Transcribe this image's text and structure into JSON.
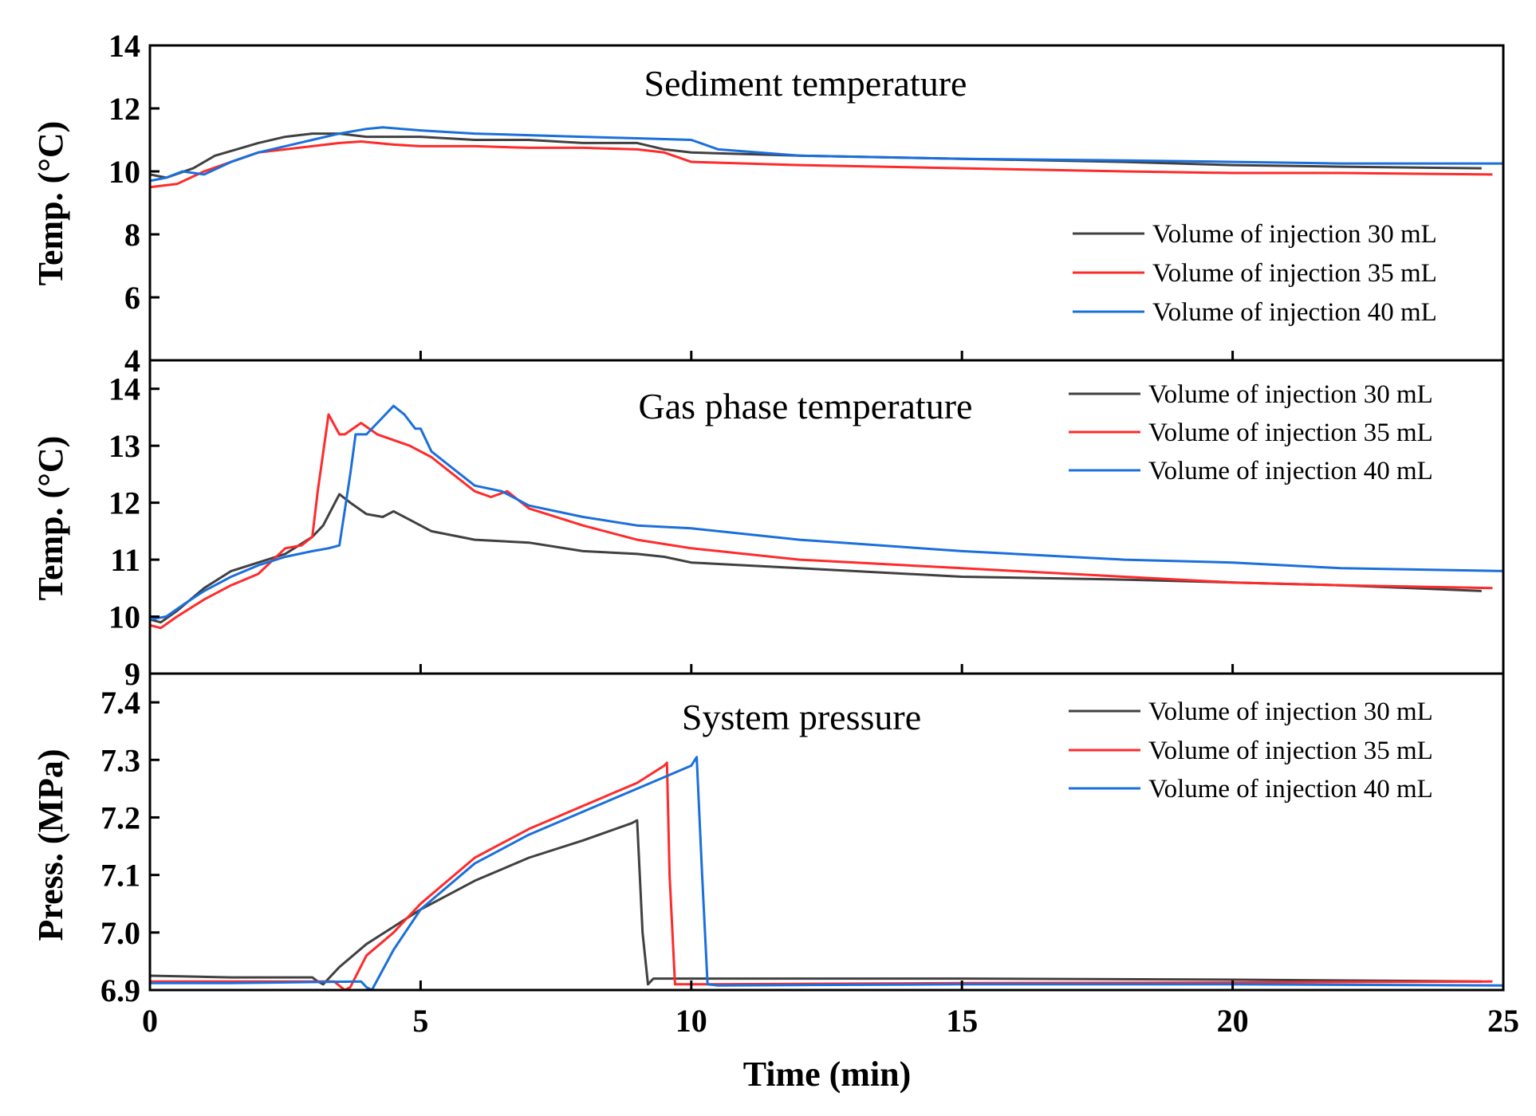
{
  "chart_data": [
    {
      "type": "line",
      "title": "Sediment temperature",
      "xlabel": "Time (min)",
      "ylabel": "Temp. (°C)",
      "xlim": [
        0,
        25
      ],
      "ylim": [
        4,
        14
      ],
      "xticks": [
        0,
        5,
        10,
        15,
        20,
        25
      ],
      "yticks": [
        4,
        6,
        8,
        10,
        12,
        14
      ],
      "legend_position": "right",
      "series": [
        {
          "name": "Volume of injection 30 mL",
          "color": "#404040",
          "x": [
            0,
            0.3,
            0.8,
            1.2,
            1.6,
            2.0,
            2.5,
            3.0,
            3.5,
            4.0,
            5.0,
            6.0,
            7.0,
            8.0,
            9.0,
            9.5,
            10.0,
            12.0,
            15.0,
            18.0,
            20.0,
            22.0,
            24.6
          ],
          "y": [
            9.9,
            9.8,
            10.1,
            10.5,
            10.7,
            10.9,
            11.1,
            11.2,
            11.2,
            11.1,
            11.1,
            11.0,
            11.0,
            10.9,
            10.9,
            10.7,
            10.6,
            10.5,
            10.4,
            10.3,
            10.2,
            10.15,
            10.1
          ]
        },
        {
          "name": "Volume of injection 35 mL",
          "color": "#ff2a2a",
          "x": [
            0,
            0.5,
            1.0,
            1.5,
            2.0,
            2.5,
            3.0,
            3.5,
            3.9,
            4.5,
            5.0,
            6.0,
            7.0,
            8.0,
            9.0,
            9.5,
            10.0,
            12.0,
            15.0,
            18.0,
            20.0,
            22.0,
            24.8
          ],
          "y": [
            9.5,
            9.6,
            10.0,
            10.3,
            10.6,
            10.7,
            10.8,
            10.9,
            10.95,
            10.85,
            10.8,
            10.8,
            10.75,
            10.75,
            10.7,
            10.6,
            10.3,
            10.2,
            10.1,
            10.0,
            9.95,
            9.95,
            9.9
          ]
        },
        {
          "name": "Volume of injection 40 mL",
          "color": "#1a6fdc",
          "x": [
            0,
            0.3,
            0.6,
            1.0,
            1.5,
            2.0,
            2.5,
            3.0,
            3.5,
            4.0,
            4.3,
            5.0,
            6.0,
            7.0,
            8.0,
            9.0,
            10.0,
            10.5,
            12.0,
            15.0,
            18.0,
            20.0,
            22.0,
            25.0
          ],
          "y": [
            9.7,
            9.8,
            10.0,
            9.9,
            10.3,
            10.6,
            10.8,
            11.0,
            11.2,
            11.35,
            11.4,
            11.3,
            11.2,
            11.15,
            11.1,
            11.05,
            11.0,
            10.7,
            10.5,
            10.4,
            10.35,
            10.3,
            10.25,
            10.25
          ]
        }
      ]
    },
    {
      "type": "line",
      "title": "Gas phase temperature",
      "xlabel": "Time (min)",
      "ylabel": "Temp. (°C)",
      "xlim": [
        0,
        25
      ],
      "ylim": [
        9,
        14.5
      ],
      "xticks": [
        0,
        5,
        10,
        15,
        20,
        25
      ],
      "yticks": [
        9,
        10,
        11,
        12,
        13,
        14
      ],
      "legend_position": "top-right",
      "series": [
        {
          "name": "Volume of injection 30 mL",
          "color": "#404040",
          "x": [
            0,
            0.2,
            0.5,
            1.0,
            1.5,
            2.0,
            2.5,
            3.0,
            3.2,
            3.5,
            3.7,
            4.0,
            4.3,
            4.5,
            4.8,
            5.2,
            6.0,
            7.0,
            8.0,
            9.0,
            9.5,
            10.0,
            12.0,
            15.0,
            18.0,
            20.0,
            22.0,
            24.6
          ],
          "y": [
            9.95,
            9.9,
            10.1,
            10.5,
            10.8,
            10.95,
            11.1,
            11.4,
            11.6,
            12.15,
            12.0,
            11.8,
            11.75,
            11.85,
            11.7,
            11.5,
            11.35,
            11.3,
            11.15,
            11.1,
            11.05,
            10.95,
            10.85,
            10.7,
            10.65,
            10.6,
            10.55,
            10.45
          ]
        },
        {
          "name": "Volume of injection 35 mL",
          "color": "#ff2a2a",
          "x": [
            0,
            0.2,
            0.5,
            1.0,
            1.5,
            2.0,
            2.5,
            2.8,
            3.0,
            3.1,
            3.3,
            3.5,
            3.6,
            3.9,
            4.2,
            4.8,
            5.2,
            5.6,
            6.0,
            6.3,
            6.6,
            7.0,
            8.0,
            9.0,
            10.0,
            12.0,
            15.0,
            18.0,
            20.0,
            22.0,
            24.8
          ],
          "y": [
            9.85,
            9.8,
            10.0,
            10.3,
            10.55,
            10.75,
            11.2,
            11.25,
            11.4,
            12.2,
            13.55,
            13.2,
            13.2,
            13.4,
            13.2,
            13.0,
            12.8,
            12.5,
            12.2,
            12.1,
            12.2,
            11.9,
            11.6,
            11.35,
            11.2,
            11.0,
            10.85,
            10.7,
            10.6,
            10.55,
            10.5
          ]
        },
        {
          "name": "Volume of injection 40 mL",
          "color": "#1a6fdc",
          "x": [
            0,
            0.3,
            0.6,
            1.0,
            1.5,
            2.0,
            2.5,
            3.0,
            3.3,
            3.5,
            3.7,
            3.8,
            4.0,
            4.3,
            4.5,
            4.7,
            4.9,
            5.0,
            5.2,
            5.6,
            6.0,
            6.5,
            7.0,
            8.0,
            9.0,
            10.0,
            12.0,
            15.0,
            18.0,
            20.0,
            22.0,
            25.0
          ],
          "y": [
            9.95,
            10.0,
            10.2,
            10.45,
            10.7,
            10.9,
            11.05,
            11.15,
            11.2,
            11.25,
            12.5,
            13.2,
            13.2,
            13.5,
            13.7,
            13.55,
            13.3,
            13.3,
            12.9,
            12.6,
            12.3,
            12.2,
            11.95,
            11.75,
            11.6,
            11.55,
            11.35,
            11.15,
            11.0,
            10.95,
            10.85,
            10.8
          ]
        }
      ]
    },
    {
      "type": "line",
      "title": "System pressure",
      "xlabel": "Time (min)",
      "ylabel": "Press. (MPa)",
      "xlim": [
        0,
        25
      ],
      "ylim": [
        6.9,
        7.45
      ],
      "xticks": [
        0,
        5,
        10,
        15,
        20,
        25
      ],
      "yticks": [
        6.9,
        7.0,
        7.1,
        7.2,
        7.3,
        7.4
      ],
      "legend_position": "top-right",
      "series": [
        {
          "name": "Volume of injection 30 mL",
          "color": "#404040",
          "x": [
            0,
            1.5,
            3.0,
            3.1,
            3.2,
            3.5,
            4.0,
            4.5,
            5.0,
            6.0,
            7.0,
            8.0,
            8.9,
            9.0,
            9.1,
            9.2,
            9.3,
            10.0,
            15.0,
            20.0,
            24.6
          ],
          "y": [
            6.925,
            6.922,
            6.922,
            6.915,
            6.91,
            6.94,
            6.98,
            7.01,
            7.04,
            7.09,
            7.13,
            7.16,
            7.19,
            7.195,
            7.0,
            6.91,
            6.92,
            6.92,
            6.92,
            6.918,
            6.915
          ]
        },
        {
          "name": "Volume of injection 35 mL",
          "color": "#ff2a2a",
          "x": [
            0,
            1.5,
            3.4,
            3.6,
            3.7,
            4.0,
            4.5,
            5.0,
            6.0,
            7.0,
            8.0,
            9.0,
            9.5,
            9.55,
            9.6,
            9.7,
            10.0,
            15.0,
            20.0,
            24.8
          ],
          "y": [
            6.915,
            6.915,
            6.915,
            6.9,
            6.905,
            6.96,
            7.0,
            7.05,
            7.13,
            7.18,
            7.22,
            7.26,
            7.29,
            7.295,
            7.1,
            6.91,
            6.91,
            6.912,
            6.913,
            6.915
          ]
        },
        {
          "name": "Volume of injection 40 mL",
          "color": "#1a6fdc",
          "x": [
            0,
            1.5,
            3.9,
            4.0,
            4.1,
            4.5,
            5.0,
            6.0,
            7.0,
            8.0,
            9.0,
            10.0,
            10.1,
            10.2,
            10.3,
            10.5,
            15.0,
            20.0,
            25.0
          ],
          "y": [
            6.912,
            6.912,
            6.915,
            6.905,
            6.9,
            6.97,
            7.04,
            7.12,
            7.17,
            7.21,
            7.25,
            7.29,
            7.305,
            7.1,
            6.91,
            6.908,
            6.91,
            6.91,
            6.908
          ]
        }
      ]
    }
  ]
}
